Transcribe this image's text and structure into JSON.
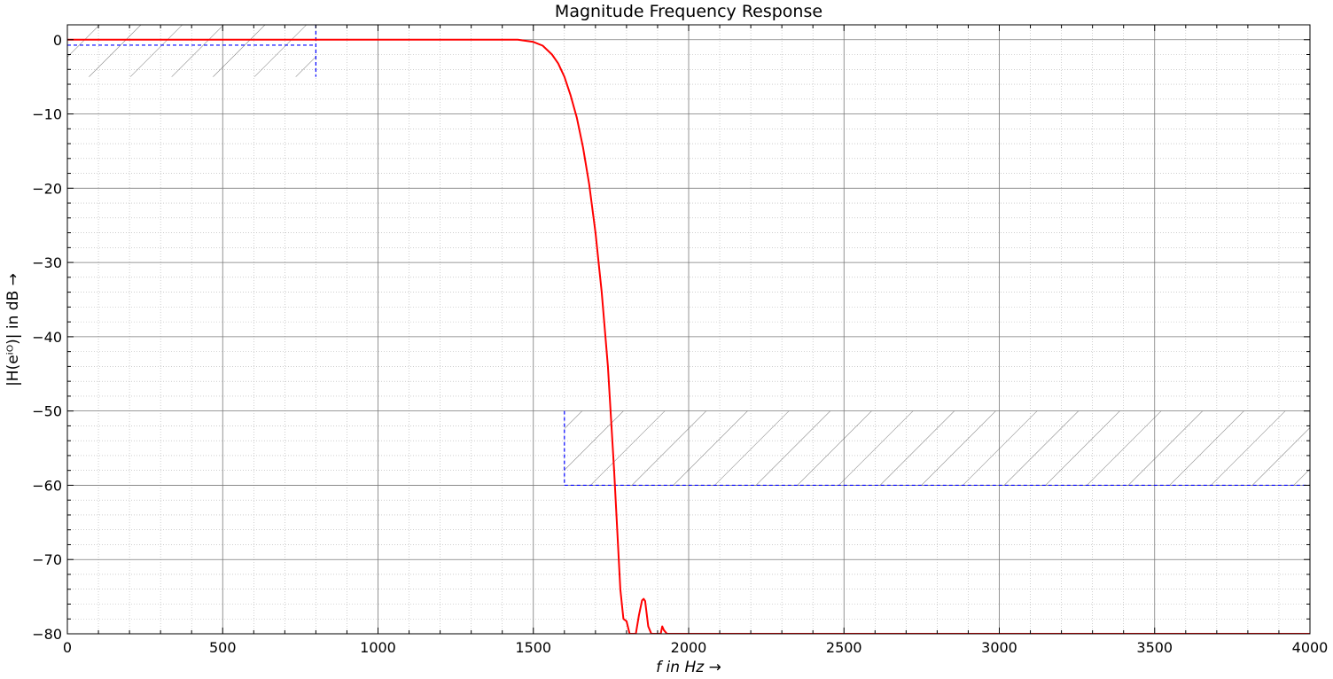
{
  "chart_data": {
    "type": "line",
    "title": "Magnitude Frequency Response",
    "xlabel": "f in Hz →",
    "ylabel": "|H(eⁱᴼ)| in dB →",
    "xlim": [
      0,
      4000
    ],
    "ylim": [
      -80,
      2
    ],
    "x_ticks": [
      0,
      500,
      1000,
      1500,
      2000,
      2500,
      3000,
      3500,
      4000
    ],
    "x_tick_labels": [
      "0",
      "500",
      "1000",
      "1500",
      "2000",
      "2500",
      "3000",
      "3500",
      "4000"
    ],
    "y_ticks": [
      0,
      -10,
      -20,
      -30,
      -40,
      -50,
      -60,
      -70,
      -80
    ],
    "y_tick_labels": [
      "0",
      "−10",
      "−20",
      "−30",
      "−40",
      "−50",
      "−60",
      "−70",
      "−80"
    ],
    "grid": true,
    "minor_grid": true,
    "series": [
      {
        "color": "#ff0000",
        "x": [
          0,
          500,
          1000,
          1400,
          1450,
          1500,
          1530,
          1560,
          1580,
          1600,
          1620,
          1640,
          1660,
          1680,
          1700,
          1720,
          1740,
          1750,
          1760,
          1770,
          1780,
          1790,
          1800,
          1810,
          1820,
          1830,
          1840,
          1850,
          1855,
          1860,
          1870,
          1880,
          1890,
          1900,
          1910,
          1915,
          1920,
          1930,
          2000,
          2500,
          3000,
          3500,
          4000
        ],
        "y": [
          0,
          0,
          0,
          0,
          0,
          -0.3,
          -0.8,
          -2,
          -3.2,
          -5,
          -7.5,
          -10.5,
          -14.5,
          -19.5,
          -26,
          -34,
          -44,
          -51,
          -58,
          -66,
          -74,
          -78,
          -78.3,
          -80,
          -80,
          -80,
          -77.5,
          -75.5,
          -75.3,
          -75.6,
          -79,
          -80,
          -80,
          -80,
          -80,
          -79,
          -79.5,
          -80,
          -80,
          -80,
          -80,
          -80,
          -80
        ]
      }
    ],
    "tolerance_scheme": {
      "color": "#0000ff",
      "passband": {
        "f_edge": 800,
        "upper_db": 0,
        "lower_db": -0.5
      },
      "stopband": {
        "f_edge": 1600,
        "max_db": -60
      }
    }
  }
}
